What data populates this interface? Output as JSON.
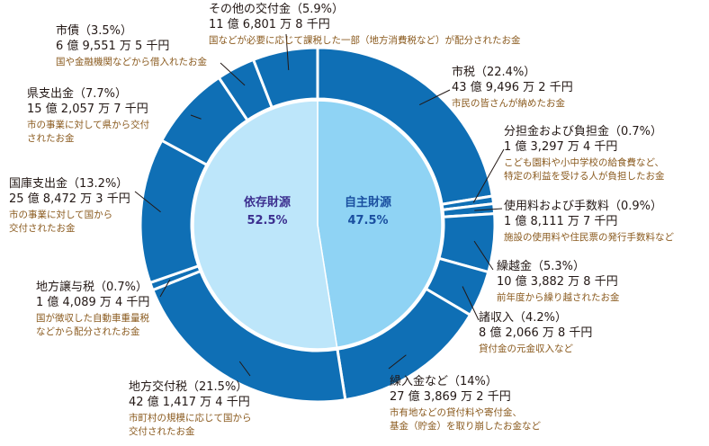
{
  "chart_data": {
    "type": "pie",
    "inner": [
      {
        "name": "自主財源",
        "pct_label": "47.5%",
        "value": 47.5,
        "color": "#8fd3f4",
        "text_color": "#1a4fa0"
      },
      {
        "name": "依存財源",
        "pct_label": "52.5%",
        "value": 52.5,
        "color": "#bde6fa",
        "text_color": "#3c2f8f"
      }
    ],
    "outer": [
      {
        "name": "市税",
        "pct": "（22.4%）",
        "value": 22.4,
        "amount": "43 億 9,496 万 2 千円",
        "desc": [
          "市民の皆さんが納めたお金"
        ]
      },
      {
        "name": "分担金および負担金",
        "pct": "（0.7%）",
        "value": 0.7,
        "amount": "1 億 3,297 万 4 千円",
        "desc": [
          "こども園料や小中学校の給食費など、",
          "特定の利益を受ける人が負担したお金"
        ]
      },
      {
        "name": "使用料および手数料",
        "pct": "（0.9%）",
        "value": 0.9,
        "amount": "1 億 8,111 万 7 千円",
        "desc": [
          "施設の使用料や住民票の発行手数料など"
        ]
      },
      {
        "name": "繰越金",
        "pct": "（5.3%）",
        "value": 5.3,
        "amount": "10 億 3,882 万 8 千円",
        "desc": [
          "前年度から繰り越されたお金"
        ]
      },
      {
        "name": "諸収入",
        "pct": "（4.2%）",
        "value": 4.2,
        "amount": "8 億 2,066 万 8 千円",
        "desc": [
          "貸付金の元金収入など"
        ]
      },
      {
        "name": "繰入金など",
        "pct": "（14%）",
        "value": 14.0,
        "amount": "27 億 3,869 万 2 千円",
        "desc": [
          "市有地などの貸付料や寄付金、",
          "基金（貯金）を取り崩したお金など"
        ]
      },
      {
        "name": "地方交付税",
        "pct": "（21.5%）",
        "value": 21.5,
        "amount": "42 億 1,417 万 4 千円",
        "desc": [
          "市町村の規模に応じて国から",
          "交付されたお金"
        ]
      },
      {
        "name": "地方譲与税",
        "pct": "（0.7%）",
        "value": 0.7,
        "amount": "1 億 4,089 万 4 千円",
        "desc": [
          "国が徴収した自動車重量税",
          "などから配分されたお金"
        ]
      },
      {
        "name": "国庫支出金",
        "pct": "（13.2%）",
        "value": 13.2,
        "amount": "25 億 8,472 万 3 千円",
        "desc": [
          "市の事業に対して国から",
          "交付されたお金"
        ]
      },
      {
        "name": "県支出金",
        "pct": "（7.7%）",
        "value": 7.7,
        "amount": "15 億 2,057 万 7 千円",
        "desc": [
          "市の事業に対して県から交付",
          "されたお金"
        ]
      },
      {
        "name": "市債",
        "pct": "（3.5%）",
        "value": 3.5,
        "amount": "6 億 9,551 万 5 千円",
        "desc": [
          "国や金融機関などから借入れたお金"
        ]
      },
      {
        "name": "その他の交付金",
        "pct": "（5.9%）",
        "value": 5.9,
        "amount": "11 億 6,801 万 8 千円",
        "desc": [
          "国などが必要に応じて課税した一部（地方消費税など）が配分されたお金"
        ]
      }
    ],
    "colors": {
      "outer_fill": "#0f6fb5",
      "separator": "#ffffff",
      "title_text": "#231815",
      "desc_text": "#8a5a1e"
    }
  }
}
